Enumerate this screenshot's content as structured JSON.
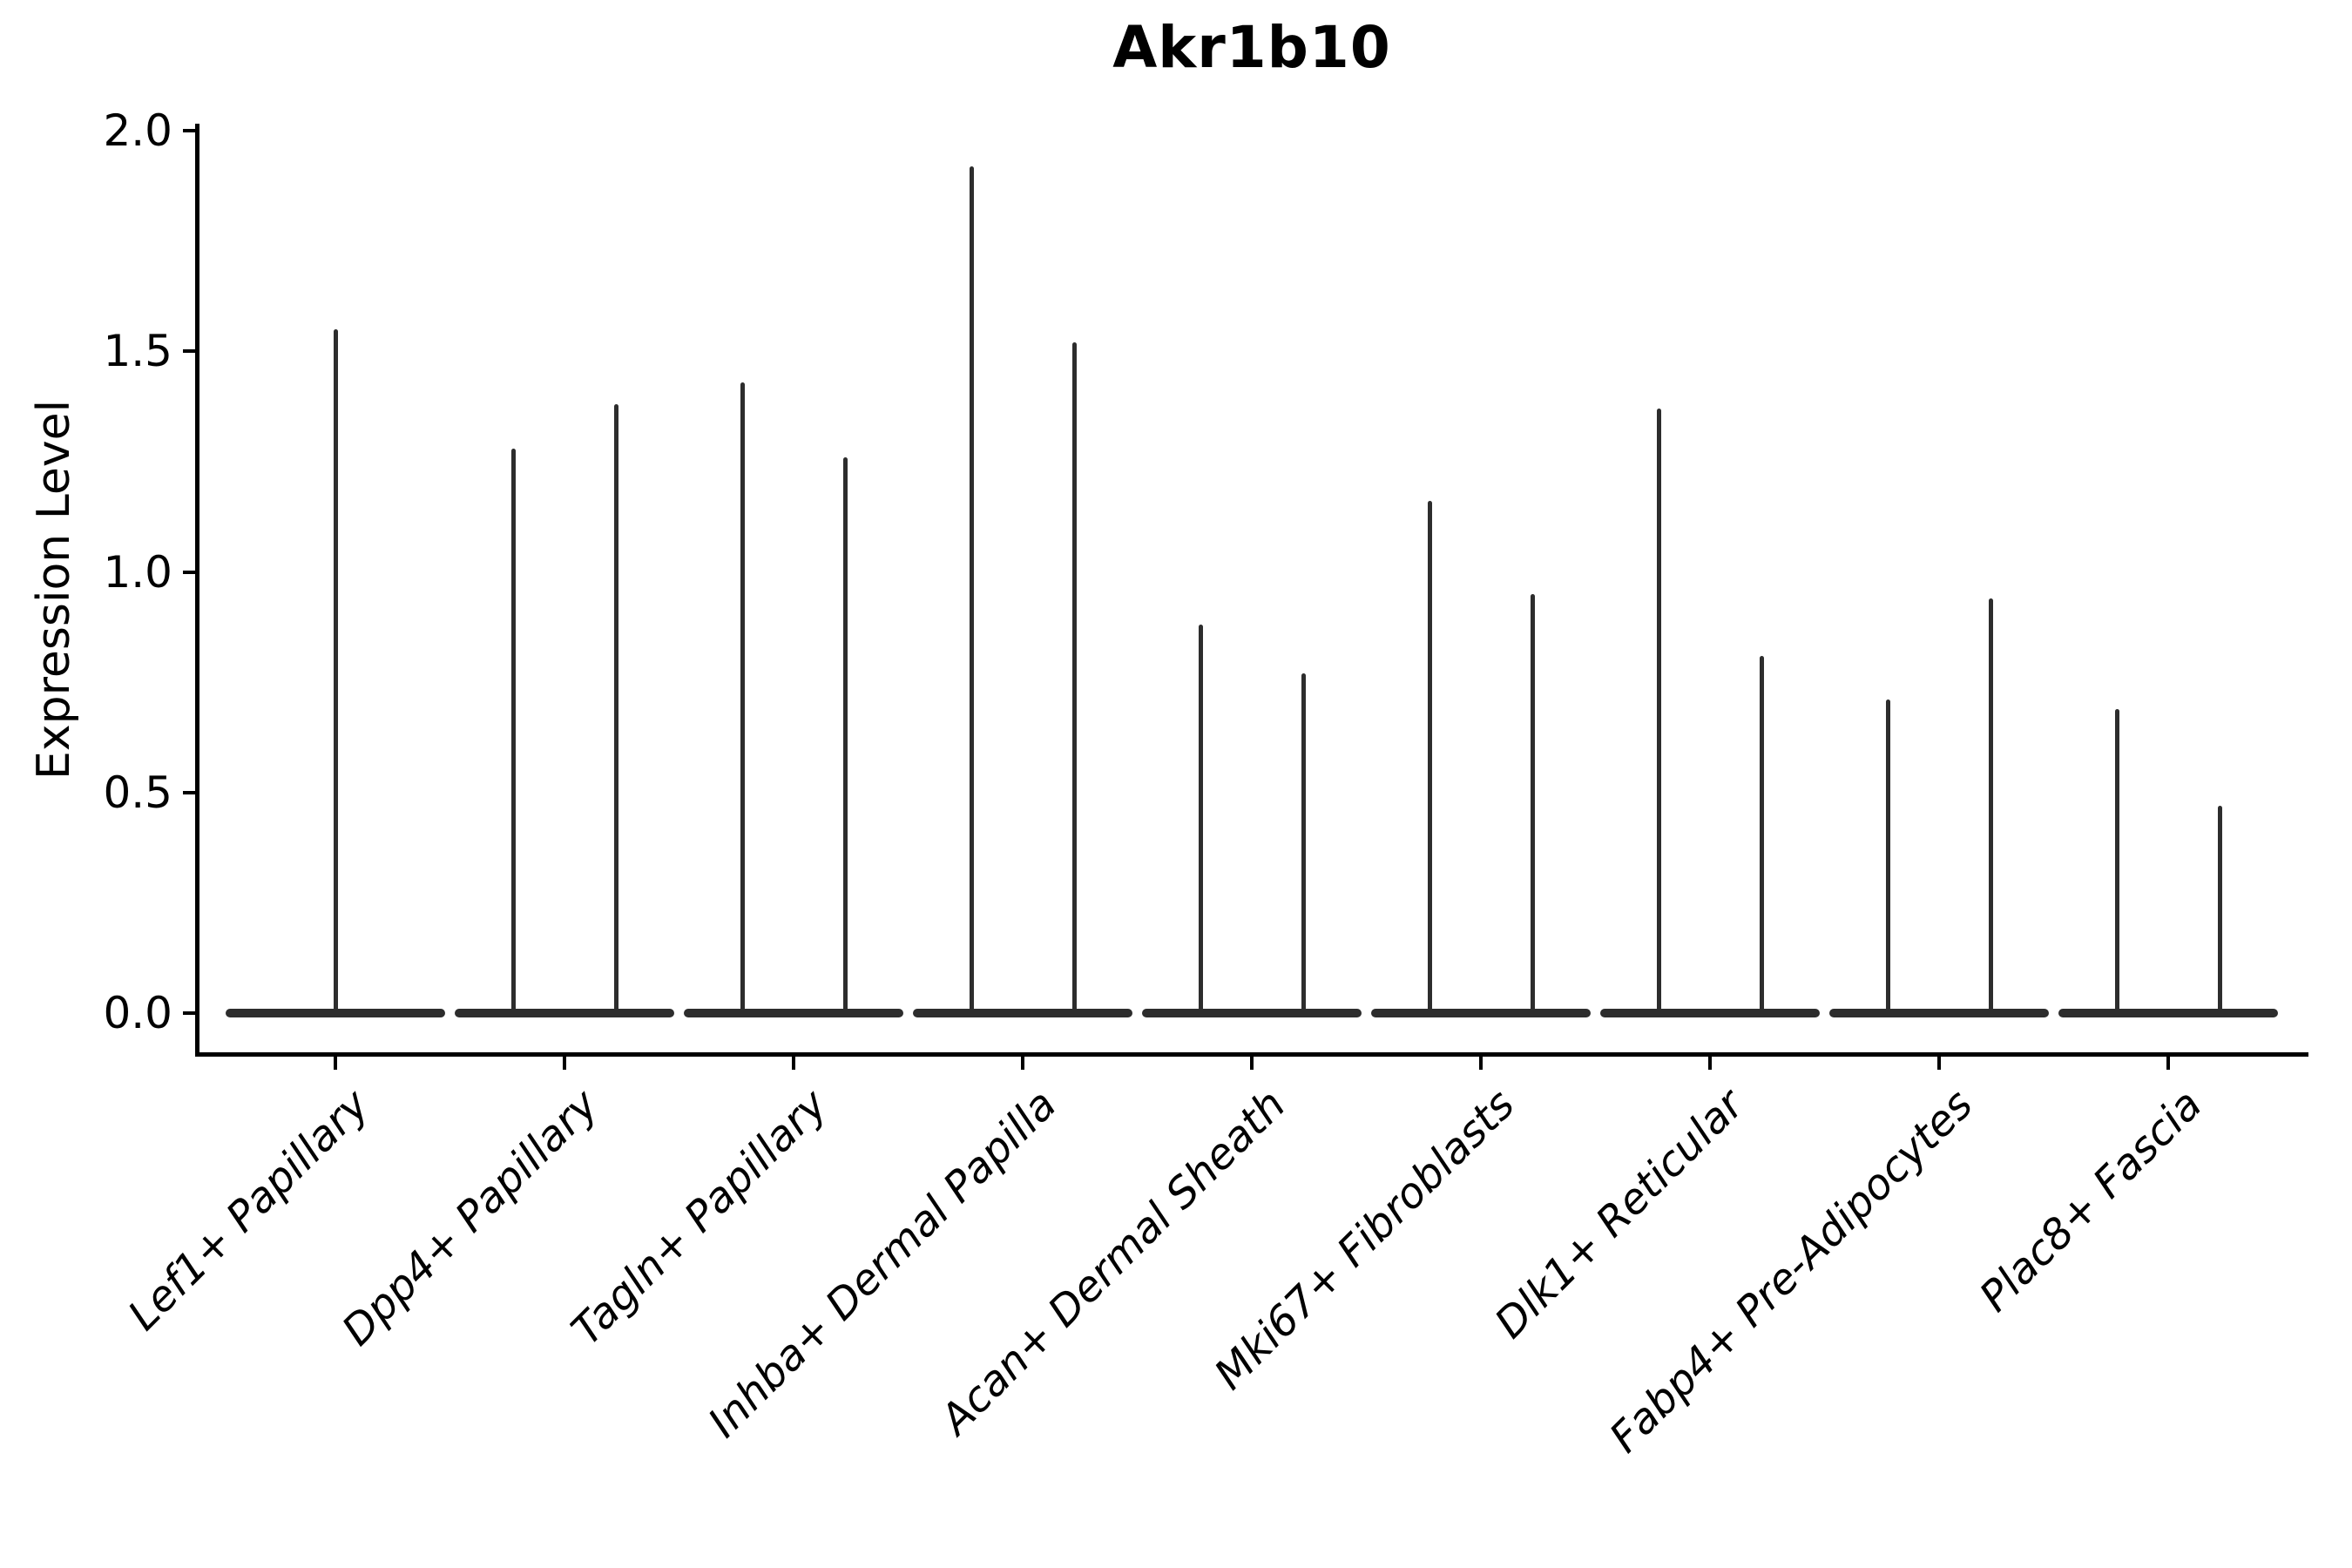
{
  "figure": {
    "title": "Akr1b10",
    "background_color": "#ffffff",
    "violin_color": "#2d2d2d",
    "axis_color": "#000000"
  },
  "chart_data": {
    "type": "violin",
    "title": "Akr1b10",
    "xlabel": "",
    "ylabel": "Expression Level",
    "ytick_labels": [
      "0.0",
      "0.5",
      "1.0",
      "1.5",
      "2.0"
    ],
    "ytick_values": [
      0.0,
      0.5,
      1.0,
      1.5,
      2.0
    ],
    "ylim": [
      -0.09,
      2.02
    ],
    "grid": false,
    "legend": null,
    "categories": [
      "Lef1+ Papillary",
      "Dpp4+ Papillary",
      "Tagln+ Papillary",
      "Inhba+ Dermal Papilla",
      "Acan+ Dermal Sheath",
      "Mki67+ Fibroblasts",
      "Dlk1+ Reticular",
      "Fabp4+ Pre-Adipocytes",
      "Plac8+ Fascia"
    ],
    "violins": [
      {
        "category": "Lef1+ Papillary",
        "zero_density_bulk": true,
        "spike_maxima": [
          1.55
        ]
      },
      {
        "category": "Dpp4+ Papillary",
        "zero_density_bulk": true,
        "spike_maxima": [
          1.28,
          1.38
        ]
      },
      {
        "category": "Tagln+ Papillary",
        "zero_density_bulk": true,
        "spike_maxima": [
          1.43,
          1.26
        ]
      },
      {
        "category": "Inhba+ Dermal Papilla",
        "zero_density_bulk": true,
        "spike_maxima": [
          1.92,
          1.52
        ]
      },
      {
        "category": "Acan+ Dermal Sheath",
        "zero_density_bulk": true,
        "spike_maxima": [
          0.88,
          0.77
        ]
      },
      {
        "category": "Mki67+ Fibroblasts",
        "zero_density_bulk": true,
        "spike_maxima": [
          1.16,
          0.95
        ]
      },
      {
        "category": "Dlk1+ Reticular",
        "zero_density_bulk": true,
        "spike_maxima": [
          1.37,
          0.81
        ]
      },
      {
        "category": "Fabp4+ Pre-Adipocytes",
        "zero_density_bulk": true,
        "spike_maxima": [
          0.71,
          0.94
        ]
      },
      {
        "category": "Plac8+ Fascia",
        "zero_density_bulk": true,
        "spike_maxima": [
          0.69,
          0.47
        ]
      }
    ]
  }
}
